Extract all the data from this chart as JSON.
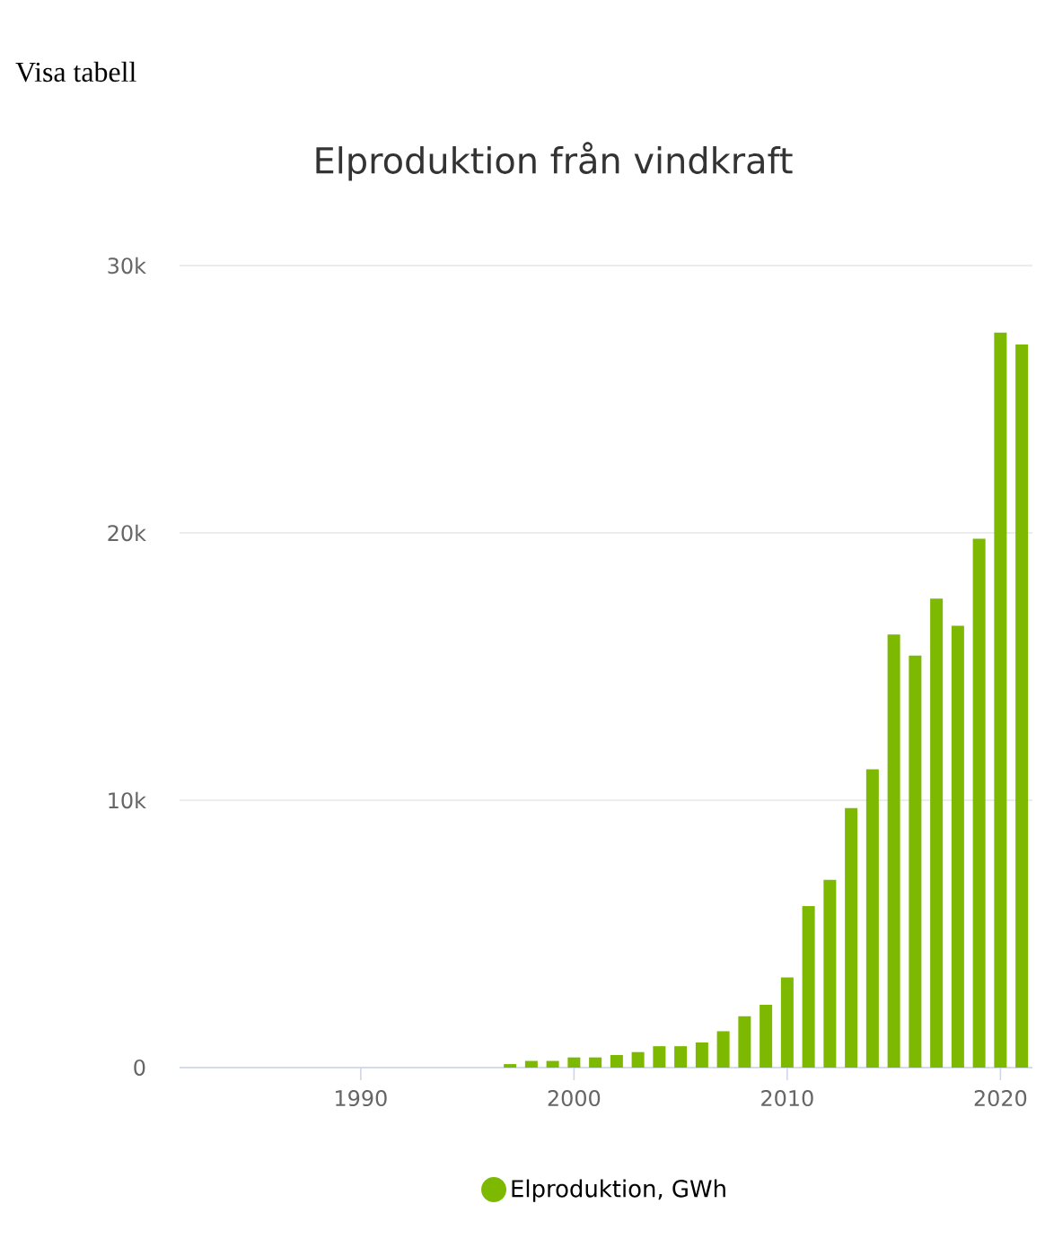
{
  "chart_data": {
    "type": "bar",
    "title": "Elproduktion från vindkraft",
    "annotations": [
      "Visa tabell"
    ],
    "x": [
      1997,
      1998,
      1999,
      2000,
      2001,
      2002,
      2003,
      2004,
      2005,
      2006,
      2007,
      2008,
      2009,
      2010,
      2011,
      2012,
      2013,
      2014,
      2015,
      2016,
      2017,
      2018,
      2019,
      2020,
      2021
    ],
    "series": [
      {
        "name": "Elproduktion, GWh",
        "color": "#7cb900",
        "values": [
          130,
          250,
          250,
          380,
          380,
          470,
          580,
          800,
          800,
          940,
          1360,
          1920,
          2350,
          3370,
          6040,
          7020,
          9710,
          11160,
          16200,
          15410,
          17540,
          16530,
          19780,
          27490,
          27050
        ]
      }
    ],
    "xlim": [
      1981.5,
      2021.5
    ],
    "xticks": [
      1990,
      2000,
      2010,
      2020
    ],
    "ylim": [
      0,
      30000
    ],
    "yticks": [
      {
        "value": 0,
        "label": "0"
      },
      {
        "value": 10000,
        "label": "10k"
      },
      {
        "value": 20000,
        "label": "20k"
      },
      {
        "value": 30000,
        "label": "30k"
      }
    ],
    "grid": "y",
    "legend": "bottom"
  }
}
